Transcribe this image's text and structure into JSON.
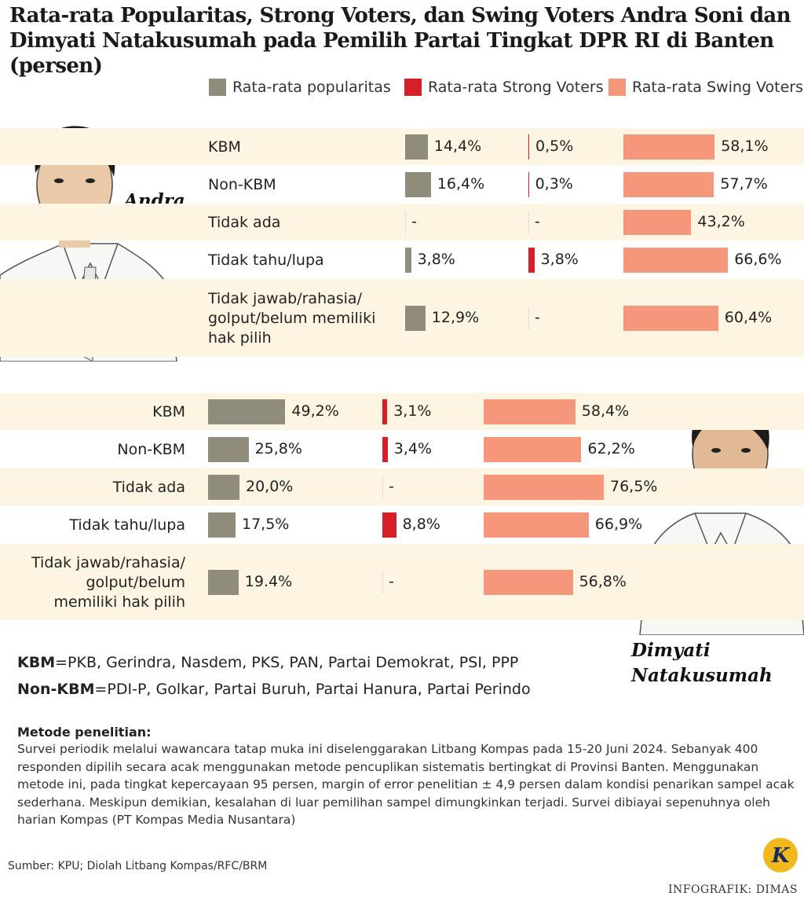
{
  "title": "Rata-rata Popularitas, Strong Voters, dan Swing Voters Andra Soni dan Dimyati Natakusumah pada Pemilih Partai Tingkat DPR RI di Banten (persen)",
  "chart_data": [
    {
      "type": "bar",
      "orientation": "horizontal",
      "candidate": "Andra Soni",
      "categories": [
        "KBM",
        "Non-KBM",
        "Tidak ada",
        "Tidak tahu/lupa",
        "Tidak jawab/rahasia/ golput/belum memiliki hak pilih"
      ],
      "series": [
        {
          "name": "Rata-rata popularitas",
          "color": "#8f8c7b",
          "values": [
            14.4,
            16.4,
            null,
            3.8,
            12.9
          ],
          "value_labels": [
            "14,4%",
            "16,4%",
            "-",
            "3,8%",
            "12,9%"
          ]
        },
        {
          "name": "Rata-rata Strong Voters",
          "color": "#d71f2a",
          "values": [
            0.5,
            0.3,
            null,
            3.8,
            null
          ],
          "value_labels": [
            "0,5%",
            "0,3%",
            "-",
            "3,8%",
            "-"
          ]
        },
        {
          "name": "Rata-rata Swing Voters",
          "color": "#f5977b",
          "values": [
            58.1,
            57.7,
            43.2,
            66.6,
            60.4
          ],
          "value_labels": [
            "58,1%",
            "57,7%",
            "43,2%",
            "66,6%",
            "60,4%"
          ]
        }
      ]
    },
    {
      "type": "bar",
      "orientation": "horizontal",
      "candidate": "Dimyati Natakusumah",
      "categories": [
        "KBM",
        "Non-KBM",
        "Tidak ada",
        "Tidak tahu/lupa",
        "Tidak jawab/rahasia/ golput/belum memiliki hak pilih"
      ],
      "series": [
        {
          "name": "Rata-rata popularitas",
          "color": "#8f8c7b",
          "values": [
            49.2,
            25.8,
            20.0,
            17.5,
            19.4
          ],
          "value_labels": [
            "49,2%",
            "25,8%",
            "20,0%",
            "17,5%",
            "19.4%"
          ]
        },
        {
          "name": "Rata-rata Strong Voters",
          "color": "#d71f2a",
          "values": [
            3.1,
            3.4,
            null,
            8.8,
            null
          ],
          "value_labels": [
            "3,1%",
            "3,4%",
            "-",
            "8,8%",
            "-"
          ]
        },
        {
          "name": "Rata-rata Swing Voters",
          "color": "#f5977b",
          "values": [
            58.4,
            62.2,
            76.5,
            66.9,
            56.8
          ],
          "value_labels": [
            "58,4%",
            "62,2%",
            "76,5%",
            "66,9%",
            "56,8%"
          ]
        }
      ]
    }
  ],
  "definitions": [
    {
      "term": "KBM",
      "text": "=PKB, Gerindra, Nasdem, PKS, PAN, Partai Demokrat, PSI, PPP"
    },
    {
      "term": "Non-KBM",
      "text": "=PDI-P, Golkar, Partai Buruh, Partai Hanura, Partai Perindo"
    }
  ],
  "method": {
    "heading": "Metode penelitian:",
    "text": "Survei periodik melalui wawancara tatap muka ini diselenggarakan Litbang Kompas pada 15-20 Juni 2024. Sebanyak 400 responden dipilih secara acak menggunakan metode pencuplikan sistematis bertingkat di Provinsi Banten. Menggunakan metode ini, pada tingkat kepercayaan 95 persen, margin of error penelitian ± 4,9 persen dalam kondisi penarikan sampel acak sederhana. Meskipun demikian, kesalahan di luar pemilihan sampel dimungkinkan terjadi. Survei dibiayai sepenuhnya oleh harian Kompas (PT Kompas Media Nusantara)"
  },
  "source": "Sumber: KPU; Diolah Litbang Kompas/RFC/BRM",
  "credit": "INFOGRAFIK: DIMAS",
  "logo": "K"
}
